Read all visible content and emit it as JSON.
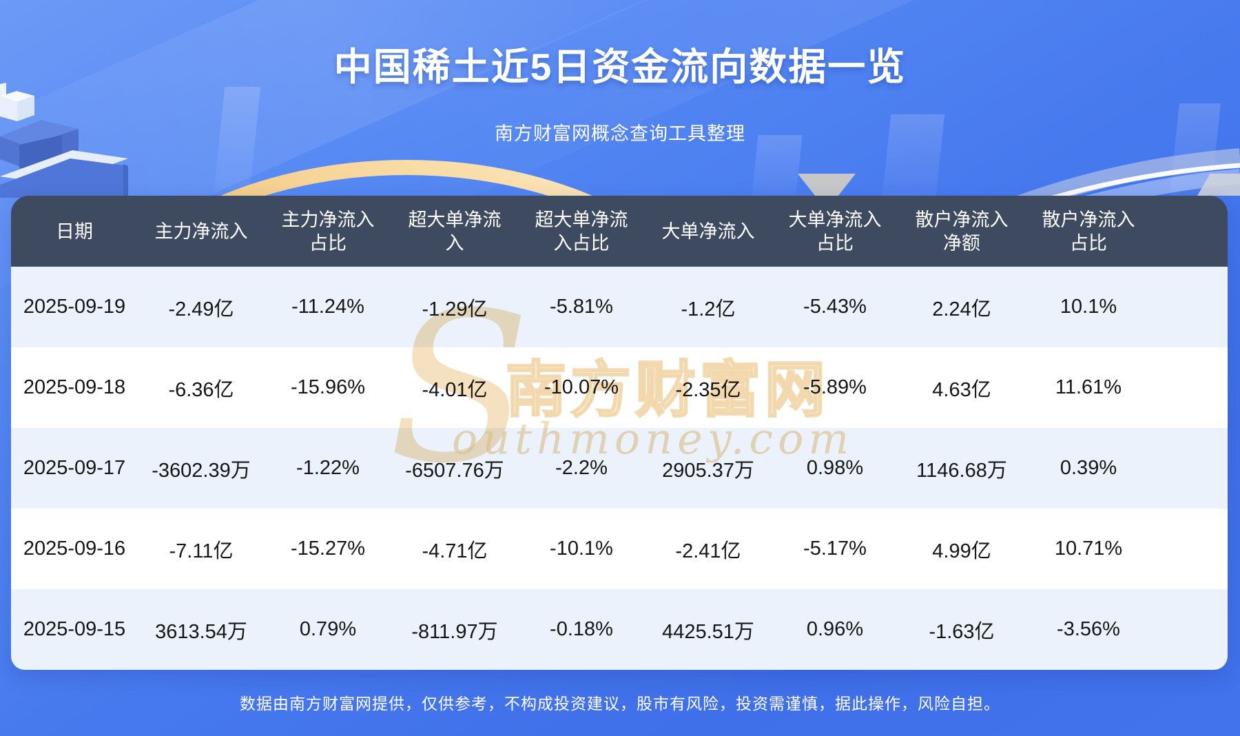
{
  "page": {
    "title": "中国稀土近5日资金流向数据一览",
    "subtitle": "南方财富网概念查询工具整理",
    "footer": "数据由南方财富网提供，仅供参考，不构成投资建议，股市有风险，投资需谨慎，据此操作，风险自担。"
  },
  "watermark": {
    "initial": "S",
    "cn": "南方财富网",
    "en": "outhmoney.com"
  },
  "colors": {
    "header_bg": "#3E4A5F",
    "row_bg": "#FFFFFF",
    "row_alt_bg": "#EBF2FB",
    "page_blue": "#4273EC",
    "gold_arc": "#F2C277",
    "header_text": "#FFFFFF",
    "cell_text": "#151515",
    "watermark_tan": "#EECD94"
  },
  "chart_data": {
    "type": "table",
    "title": "中国稀土近5日资金流向数据一览",
    "subtitle": "南方财富网概念查询工具整理",
    "columns": [
      "日期",
      "主力净流入",
      "主力净流入占比",
      "超大单净流入",
      "超大单净流入占比",
      "大单净流入",
      "大单净流入占比",
      "散户净流入净额",
      "散户净流入占比"
    ],
    "columns_wrapped": [
      "日期",
      "主力净流入",
      "主力净流入\n占比",
      "超大单净流\n入",
      "超大单净流\n入占比",
      "大单净流入",
      "大单净流入\n占比",
      "散户净流入\n净额",
      "散户净流入\n占比"
    ],
    "rows": [
      [
        "2025-09-19",
        "-2.49亿",
        "-11.24%",
        "-1.29亿",
        "-5.81%",
        "-1.2亿",
        "-5.43%",
        "2.24亿",
        "10.1%"
      ],
      [
        "2025-09-18",
        "-6.36亿",
        "-15.96%",
        "-4.01亿",
        "-10.07%",
        "-2.35亿",
        "-5.89%",
        "4.63亿",
        "11.61%"
      ],
      [
        "2025-09-17",
        "-3602.39万",
        "-1.22%",
        "-6507.76万",
        "-2.2%",
        "2905.37万",
        "0.98%",
        "1146.68万",
        "0.39%"
      ],
      [
        "2025-09-16",
        "-7.11亿",
        "-15.27%",
        "-4.71亿",
        "-10.1%",
        "-2.41亿",
        "-5.17%",
        "4.99亿",
        "10.71%"
      ],
      [
        "2025-09-15",
        "3613.54万",
        "0.79%",
        "-811.97万",
        "-0.18%",
        "4425.51万",
        "0.96%",
        "-1.63亿",
        "-3.56%"
      ]
    ]
  }
}
